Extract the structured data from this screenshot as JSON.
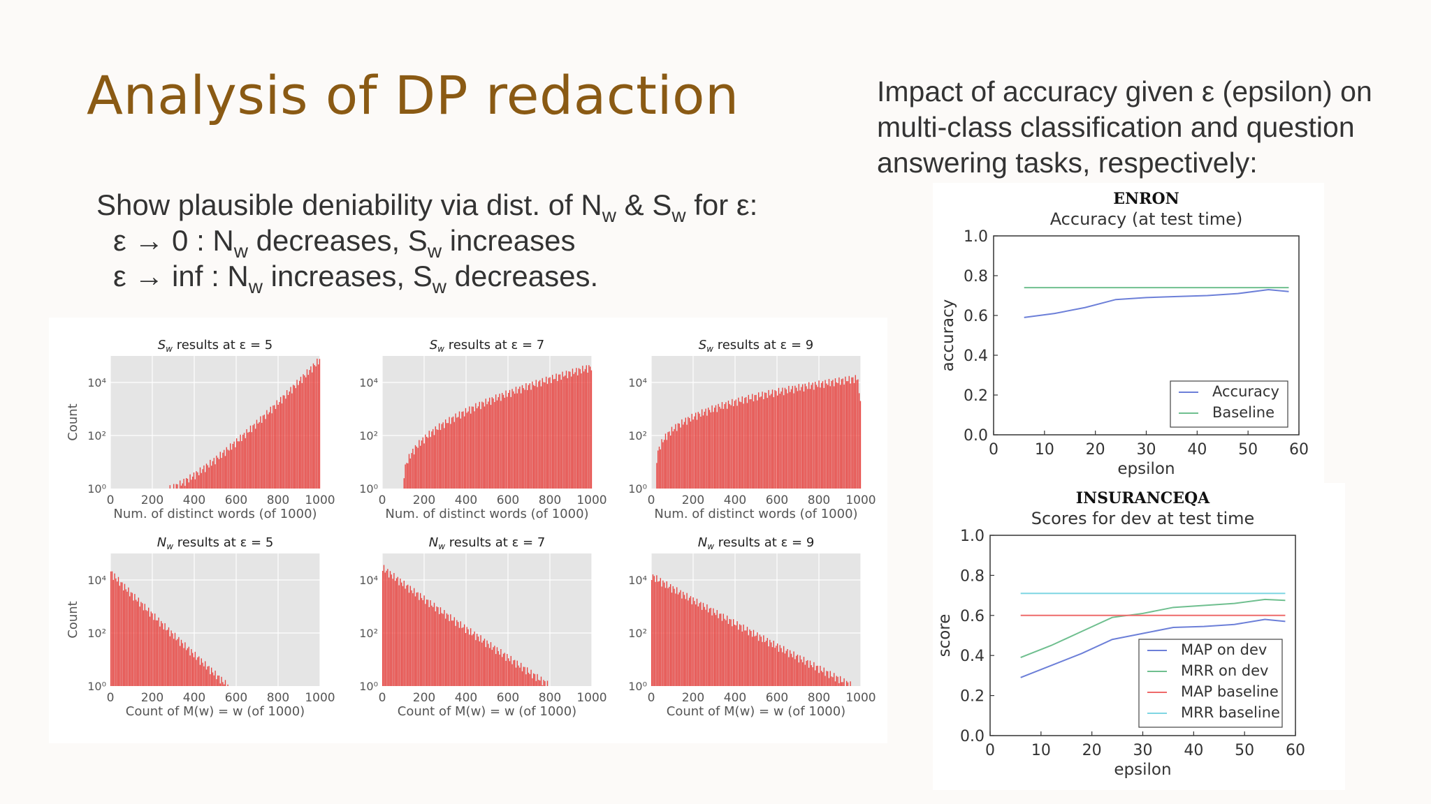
{
  "slide": {
    "title": "Analysis of DP redaction",
    "bullets": {
      "line1": {
        "pre": "Show plausible deniability via dist. of N",
        "sub1": "w",
        "mid": " & S",
        "sub2": "w",
        "post": " for ε:"
      },
      "line2": {
        "pre": "ε → 0 :  N",
        "sub1": "w",
        "mid": " decreases, S",
        "sub2": "w",
        "post": " increases"
      },
      "line3": {
        "pre": "ε → inf : N",
        "sub1": "w",
        "mid": " increases, S",
        "sub2": "w",
        "post": " decreases."
      }
    },
    "right_text": "Impact of accuracy given ε (epsilon) on multi-class classification and question answering tasks, respectively:"
  },
  "colors": {
    "title": "#8a5a14",
    "bar": "#e8403c",
    "hist_bg": "#e5e5e5"
  },
  "chart_data": [
    {
      "type": "bar",
      "id": "sw5",
      "title": "S_w results at ε = 5",
      "xlabel": "Num. of distinct words (of 1000)",
      "ylabel": "Count",
      "xlim": [
        0,
        1000
      ],
      "ylog": true,
      "ylim": [
        1,
        100000
      ],
      "xticks": [
        "0",
        "200",
        "400",
        "600",
        "800",
        "1000"
      ],
      "yticks": [
        "10⁰",
        "10²",
        "10⁴"
      ],
      "shape": {
        "kind": "rising",
        "start": 280,
        "base": 1,
        "peak": 80000
      }
    },
    {
      "type": "bar",
      "id": "sw7",
      "title": "S_w results at ε = 7",
      "xlabel": "Num. of distinct words (of 1000)",
      "ylabel": "",
      "xlim": [
        0,
        1000
      ],
      "ylog": true,
      "ylim": [
        1,
        100000
      ],
      "xticks": [
        "0",
        "200",
        "400",
        "600",
        "800",
        "1000"
      ],
      "yticks": [
        "10⁰",
        "10²",
        "10⁴"
      ],
      "shape": {
        "kind": "concave",
        "start": 100,
        "base": 2,
        "peak": 40000
      }
    },
    {
      "type": "bar",
      "id": "sw9",
      "title": "S_w results at ε = 9",
      "xlabel": "Num. of distinct words (of 1000)",
      "ylabel": "",
      "xlim": [
        0,
        1000
      ],
      "ylog": true,
      "ylim": [
        1,
        100000
      ],
      "xticks": [
        "0",
        "200",
        "400",
        "600",
        "800",
        "1000"
      ],
      "yticks": [
        "10⁰",
        "10²",
        "10⁴"
      ],
      "shape": {
        "kind": "plateau",
        "start": 20,
        "base": 2,
        "peak": 15000
      }
    },
    {
      "type": "bar",
      "id": "nw5",
      "title": "N_w results at ε = 5",
      "xlabel": "Count of M(w) = w (of 1000)",
      "ylabel": "Count",
      "xlim": [
        0,
        1000
      ],
      "ylog": true,
      "ylim": [
        1,
        100000
      ],
      "xticks": [
        "0",
        "200",
        "400",
        "600",
        "800",
        "1000"
      ],
      "yticks": [
        "10⁰",
        "10²",
        "10⁴"
      ],
      "shape": {
        "kind": "decay",
        "end": 560,
        "base": 1,
        "peak": 20000
      }
    },
    {
      "type": "bar",
      "id": "nw7",
      "title": "N_w results at ε = 7",
      "xlabel": "Count of M(w) = w (of 1000)",
      "ylabel": "",
      "xlim": [
        0,
        1000
      ],
      "ylog": true,
      "ylim": [
        1,
        100000
      ],
      "xticks": [
        "0",
        "200",
        "400",
        "600",
        "800",
        "1000"
      ],
      "yticks": [
        "10⁰",
        "10²",
        "10⁴"
      ],
      "shape": {
        "kind": "decay",
        "end": 800,
        "base": 1,
        "peak": 30000
      }
    },
    {
      "type": "bar",
      "id": "nw9",
      "title": "N_w results at ε = 9",
      "xlabel": "Count of M(w) = w (of 1000)",
      "ylabel": "",
      "xlim": [
        0,
        1000
      ],
      "ylog": true,
      "ylim": [
        1,
        100000
      ],
      "xticks": [
        "0",
        "200",
        "400",
        "600",
        "800",
        "1000"
      ],
      "yticks": [
        "10⁰",
        "10²",
        "10⁴"
      ],
      "shape": {
        "kind": "decay",
        "end": 960,
        "base": 1,
        "peak": 15000
      }
    },
    {
      "type": "line",
      "id": "enron",
      "heading": "ENRON",
      "title": "Accuracy (at test time)",
      "xlabel": "epsilon",
      "ylabel": "accuracy",
      "xlim": [
        0,
        60
      ],
      "ylim": [
        0,
        1.0
      ],
      "xticks": [
        "0",
        "10",
        "20",
        "30",
        "40",
        "50",
        "60"
      ],
      "yticks": [
        "0.0",
        "0.2",
        "0.4",
        "0.6",
        "0.8",
        "1.0"
      ],
      "legend": "lower-right",
      "series": [
        {
          "name": "Accuracy",
          "color": "#6c7fd8",
          "x": [
            6,
            12,
            18,
            24,
            30,
            36,
            42,
            48,
            54,
            58
          ],
          "y": [
            0.59,
            0.61,
            0.64,
            0.68,
            0.69,
            0.695,
            0.7,
            0.71,
            0.73,
            0.72
          ]
        },
        {
          "name": "Baseline",
          "color": "#6fbf8f",
          "x": [
            6,
            58
          ],
          "y": [
            0.74,
            0.74
          ]
        }
      ]
    },
    {
      "type": "line",
      "id": "insuranceqa",
      "heading": "INSURANCEQA",
      "title": "Scores for dev at test time",
      "xlabel": "epsilon",
      "ylabel": "score",
      "xlim": [
        0,
        60
      ],
      "ylim": [
        0,
        1.0
      ],
      "xticks": [
        "0",
        "10",
        "20",
        "30",
        "40",
        "50",
        "60"
      ],
      "yticks": [
        "0.0",
        "0.2",
        "0.4",
        "0.6",
        "0.8",
        "1.0"
      ],
      "legend": "lower-right",
      "series": [
        {
          "name": "MAP on dev",
          "color": "#6c7fd8",
          "x": [
            6,
            12,
            18,
            24,
            30,
            36,
            42,
            48,
            54,
            58
          ],
          "y": [
            0.29,
            0.35,
            0.41,
            0.48,
            0.51,
            0.54,
            0.545,
            0.555,
            0.58,
            0.57
          ]
        },
        {
          "name": "MRR on dev",
          "color": "#6fbf8f",
          "x": [
            6,
            12,
            18,
            24,
            30,
            36,
            42,
            48,
            54,
            58
          ],
          "y": [
            0.39,
            0.45,
            0.52,
            0.59,
            0.61,
            0.64,
            0.65,
            0.66,
            0.68,
            0.675
          ]
        },
        {
          "name": "MAP baseline",
          "color": "#ee6a6a",
          "x": [
            6,
            58
          ],
          "y": [
            0.6,
            0.6
          ]
        },
        {
          "name": "MRR baseline",
          "color": "#7fd6e3",
          "x": [
            6,
            58
          ],
          "y": [
            0.71,
            0.71
          ]
        }
      ]
    }
  ]
}
